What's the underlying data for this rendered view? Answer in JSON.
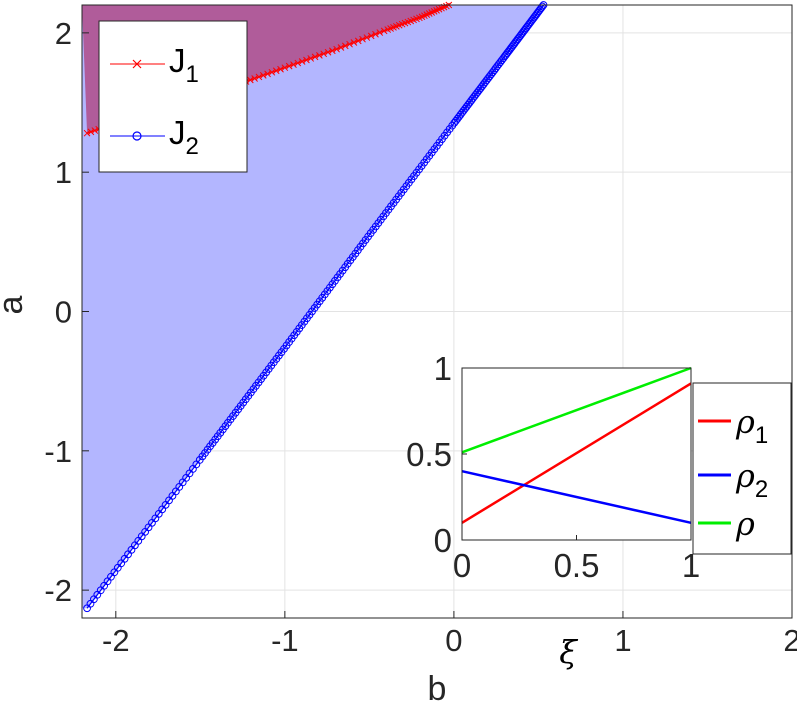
{
  "chart_data": [
    {
      "type": "area",
      "xlabel": "b",
      "ylabel": "a",
      "xlim": [
        -2.2,
        2.0
      ],
      "ylim": [
        -2.2,
        2.2
      ],
      "xticks": [
        "-2",
        "-1",
        "0",
        "1",
        "2"
      ],
      "yticks": [
        "-2",
        "-1",
        "0",
        "1",
        "2"
      ],
      "grid": true,
      "legend_position": "top-left",
      "series": [
        {
          "name": "J",
          "name_sub": "1",
          "marker": "x",
          "color": "#ff0000",
          "fill_color": "#b05c9a",
          "x": [
            -2.17,
            -1.9,
            -1.6,
            -1.3,
            -1.0,
            -0.7,
            -0.4,
            -0.2,
            -0.03
          ],
          "y": [
            1.28,
            1.39,
            1.5,
            1.62,
            1.75,
            1.88,
            2.02,
            2.11,
            2.2
          ]
        },
        {
          "name": "J",
          "name_sub": "2",
          "marker": "o",
          "color": "#0000ff",
          "fill_color": "#b3b6ff",
          "x": [
            -2.17,
            -1.5,
            -1.0,
            -0.5,
            0.0,
            0.3,
            0.53
          ],
          "y": [
            -2.13,
            -1.06,
            -0.26,
            0.55,
            1.35,
            1.83,
            2.2
          ]
        }
      ]
    },
    {
      "type": "line",
      "xlabel": "ξ",
      "xlim": [
        0,
        1
      ],
      "ylim": [
        0,
        1
      ],
      "xticks": [
        "0",
        "0.5",
        "1"
      ],
      "yticks": [
        "0",
        "0.5",
        "1"
      ],
      "grid": false,
      "legend_position": "right",
      "x": [
        0,
        1
      ],
      "series": [
        {
          "name": "ρ",
          "name_sub": "1",
          "color": "#ff0000",
          "values": [
            0.1,
            0.91
          ]
        },
        {
          "name": "ρ",
          "name_sub": "2",
          "color": "#0000ff",
          "values": [
            0.4,
            0.1
          ]
        },
        {
          "name": "ρ",
          "name_sub": "",
          "color": "#00ee00",
          "values": [
            0.51,
            1.0
          ]
        }
      ]
    }
  ]
}
